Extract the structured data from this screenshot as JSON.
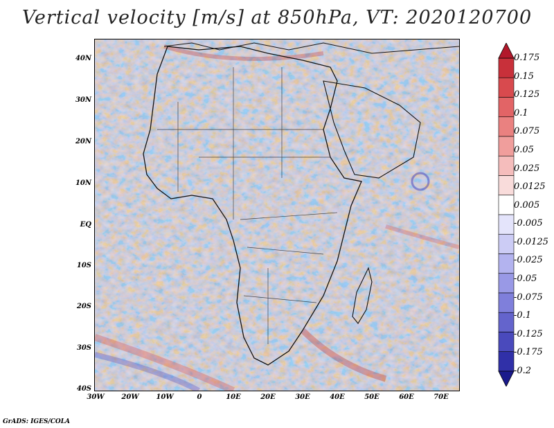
{
  "title": "Vertical velocity [m/s] at 850hPa, VT: 2020120700",
  "footer": "GrADS: IGES/COLA",
  "latitude_labels": [
    "40N",
    "30N",
    "20N",
    "10N",
    "EQ",
    "10S",
    "20S",
    "30S",
    "40S"
  ],
  "longitude_labels": [
    "30W",
    "20W",
    "10W",
    "0",
    "10E",
    "20E",
    "30E",
    "40E",
    "50E",
    "60E",
    "70E"
  ],
  "colorbar": {
    "levels": [
      "0.175",
      "0.15",
      "0.125",
      "0.1",
      "0.075",
      "0.05",
      "0.025",
      "0.0125",
      "0.005",
      "-0.005",
      "-0.0125",
      "-0.025",
      "-0.05",
      "-0.075",
      "-0.1",
      "-0.125",
      "-0.175",
      "-0.2"
    ],
    "colors": [
      "#b2182b",
      "#c8303a",
      "#d84a4e",
      "#e26466",
      "#ea8180",
      "#f09e9c",
      "#f5bdbc",
      "#f9dcdb",
      "#ffffff",
      "#e4e4fb",
      "#ccccf5",
      "#b3b3ef",
      "#9999e6",
      "#7f7fdb",
      "#6464cc",
      "#4a4abc",
      "#3030a8",
      "#1a1a8c"
    ]
  }
}
